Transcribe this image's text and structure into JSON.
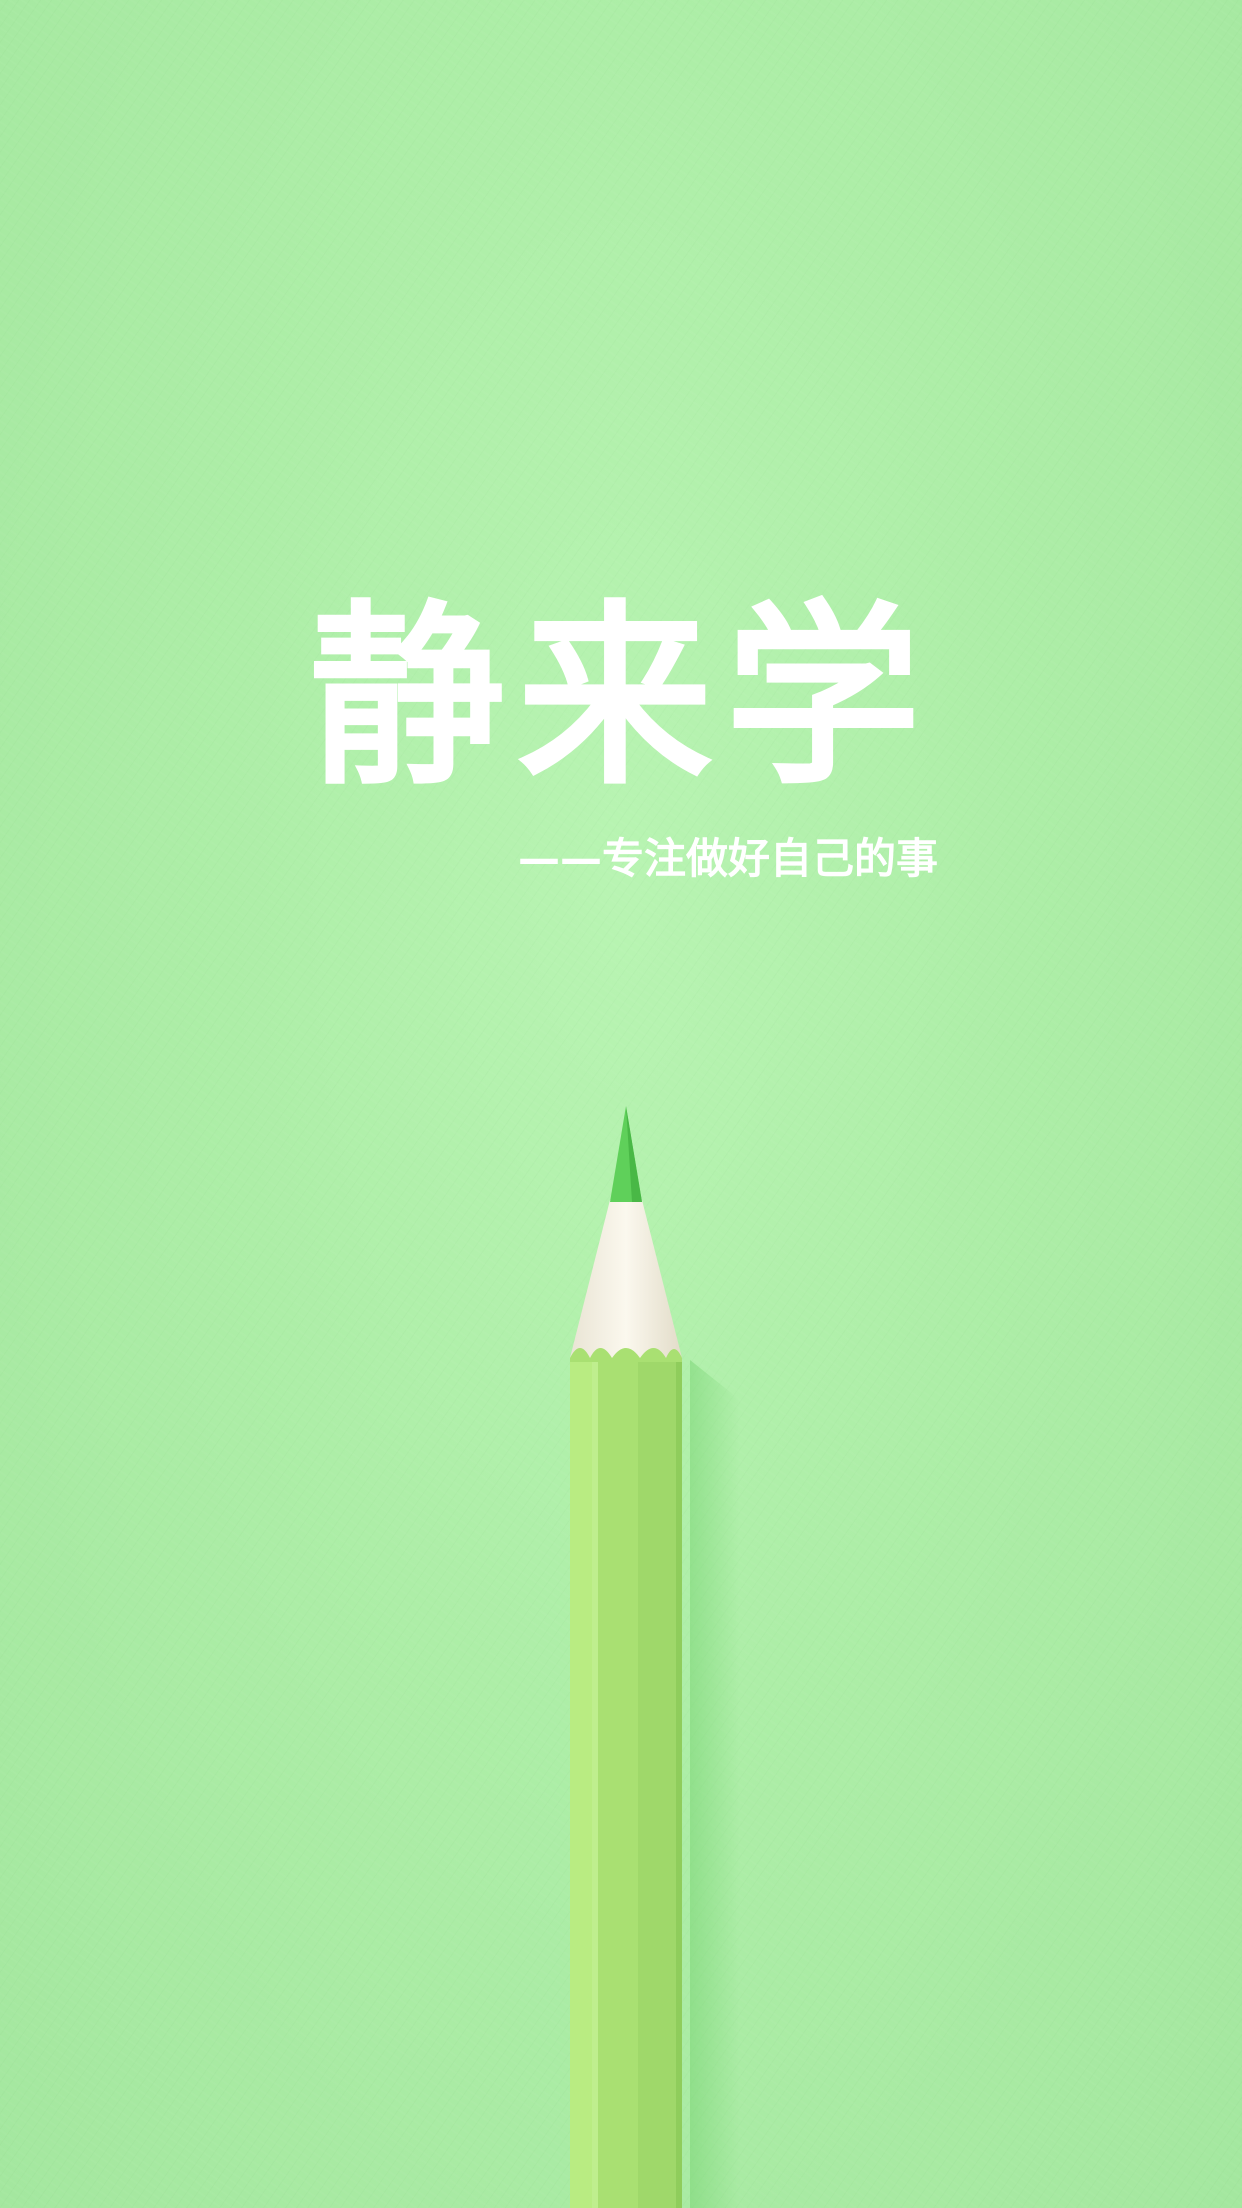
{
  "splash": {
    "app_name": "静来学",
    "slogan": "——专注做好自己的事"
  },
  "colors": {
    "background": "#aeeea8",
    "pencil_body": "#a9e072",
    "pencil_tip": "#5fd05a",
    "pencil_wood": "#f5f1e6",
    "text": "#ffffff"
  },
  "illustration": {
    "icon": "green-pencil"
  }
}
